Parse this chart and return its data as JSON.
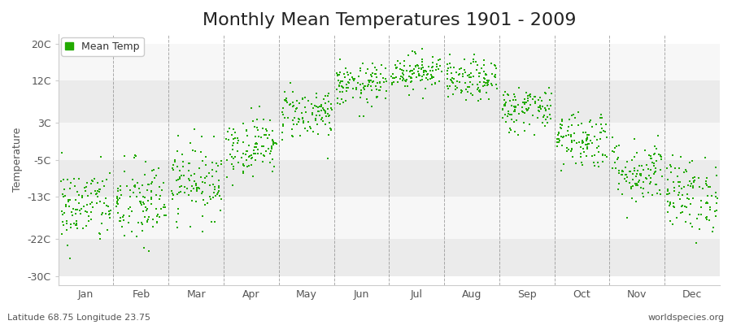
{
  "title": "Monthly Mean Temperatures 1901 - 2009",
  "ylabel": "Temperature",
  "xlabel_bottom_left": "Latitude 68.75 Longitude 23.75",
  "xlabel_bottom_right": "worldspecies.org",
  "dot_color": "#22AA00",
  "background_color": "#ffffff",
  "plot_bg_color": "#ffffff",
  "yticks": [
    -30,
    -22,
    -13,
    -5,
    3,
    12,
    20
  ],
  "ytick_labels": [
    "-30C",
    "-22C",
    "-13C",
    "-5C",
    "3C",
    "12C",
    "20C"
  ],
  "ylim": [
    -32,
    22
  ],
  "months": [
    "Jan",
    "Feb",
    "Mar",
    "Apr",
    "May",
    "Jun",
    "Jul",
    "Aug",
    "Sep",
    "Oct",
    "Nov",
    "Dec"
  ],
  "mean_temps": [
    -15.0,
    -14.5,
    -9.5,
    -2.0,
    5.0,
    11.0,
    14.0,
    12.0,
    6.0,
    -0.5,
    -7.5,
    -12.5
  ],
  "std_temps": [
    4.2,
    4.8,
    4.0,
    3.2,
    2.8,
    2.3,
    2.0,
    2.2,
    2.5,
    3.2,
    3.5,
    4.0
  ],
  "n_years": 109,
  "seed": 42,
  "marker_size": 2,
  "title_fontsize": 16,
  "axis_fontsize": 9,
  "legend_fontsize": 9,
  "band_colors": [
    "#ebebeb",
    "#f7f7f7"
  ],
  "grid_color": "#cccccc",
  "vline_color": "#888888",
  "text_color": "#555555"
}
